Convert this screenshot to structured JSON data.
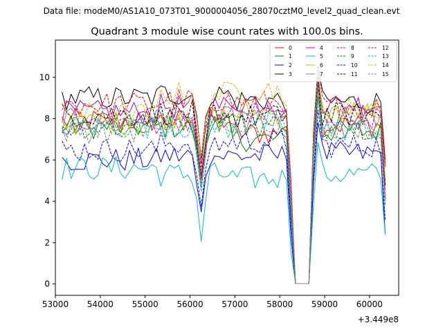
{
  "chart_data": {
    "type": "line",
    "suptitle": "Data file: modeM0/AS1A10_073T01_9000004056_28070cztM0_level2_quad_clean.evt",
    "title": "Quadrant 3 module wise count rates with 100.0s bins.",
    "xlabel": "",
    "ylabel": "",
    "x_offset_label": "+3.449e8",
    "xlim": [
      53000,
      60650
    ],
    "ylim": [
      -0.55,
      11.8
    ],
    "xticks": [
      53000,
      54000,
      55000,
      56000,
      57000,
      58000,
      59000,
      60000
    ],
    "xtick_labels": [
      "53000",
      "54000",
      "55000",
      "56000",
      "57000",
      "58000",
      "59000",
      "60000"
    ],
    "yticks": [
      0,
      2,
      4,
      6,
      8,
      10
    ],
    "ytick_labels": [
      "0",
      "2",
      "4",
      "6",
      "8",
      "10"
    ],
    "grid": false,
    "legend_position": "top-right",
    "legend_ncol": 4,
    "series": [
      {
        "name": "0",
        "color": "#ff0000",
        "dash": "solid"
      },
      {
        "name": "1",
        "color": "#008000",
        "dash": "solid"
      },
      {
        "name": "2",
        "color": "#0000ff",
        "dash": "solid"
      },
      {
        "name": "3",
        "color": "#000000",
        "dash": "solid"
      },
      {
        "name": "4",
        "color": "#bf00bf",
        "dash": "solid"
      },
      {
        "name": "5",
        "color": "#00bfbf",
        "dash": "solid"
      },
      {
        "name": "6",
        "color": "#bfbf00",
        "dash": "solid"
      },
      {
        "name": "7",
        "color": "#808080",
        "dash": "solid"
      },
      {
        "name": "8",
        "color": "#ff0000",
        "dash": "dashed"
      },
      {
        "name": "9",
        "color": "#008000",
        "dash": "dashed"
      },
      {
        "name": "10",
        "color": "#0000ff",
        "dash": "dashed"
      },
      {
        "name": "11",
        "color": "#000000",
        "dash": "dashed"
      },
      {
        "name": "12",
        "color": "#bf00bf",
        "dash": "dashed"
      },
      {
        "name": "13",
        "color": "#00bfbf",
        "dash": "dashed"
      },
      {
        "name": "14",
        "color": "#bfbf00",
        "dash": "dashed"
      },
      {
        "name": "15",
        "color": "#808080",
        "dash": "dashed"
      }
    ],
    "x_start": 53150,
    "x_step": 100,
    "n_points": 73,
    "dip_indices": [
      31,
      51
    ],
    "segment_means": [
      [
        7.9,
        7.9,
        7.3,
        7.7
      ],
      [
        7.6,
        7.6,
        7.0,
        7.4
      ],
      [
        6.0,
        6.2,
        6.2,
        6.3
      ],
      [
        9.0,
        9.2,
        8.9,
        8.8
      ],
      [
        8.3,
        8.6,
        8.8,
        8.7
      ],
      [
        5.6,
        5.3,
        5.1,
        5.3
      ],
      [
        7.8,
        8.1,
        8.3,
        8.3
      ],
      [
        7.9,
        8.0,
        7.9,
        7.9
      ],
      [
        8.7,
        8.9,
        8.8,
        8.6
      ],
      [
        7.6,
        7.9,
        7.7,
        7.6
      ],
      [
        6.5,
        6.8,
        6.9,
        6.7
      ],
      [
        8.2,
        8.3,
        8.1,
        8.2
      ],
      [
        7.8,
        8.0,
        8.3,
        8.1
      ],
      [
        7.6,
        7.6,
        7.7,
        7.5
      ],
      [
        8.2,
        9.2,
        9.4,
        8.5
      ],
      [
        7.4,
        7.8,
        7.9,
        7.6
      ]
    ]
  }
}
